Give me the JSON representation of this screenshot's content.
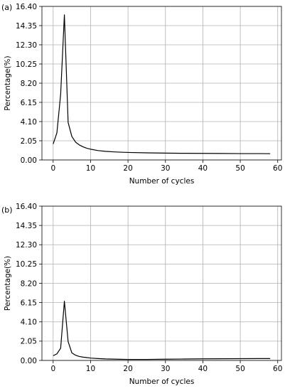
{
  "chart_data": [
    {
      "type": "line",
      "panel_label": "(a)",
      "xlabel": "Number of cycles",
      "ylabel": "Percentage(%)",
      "xlim": [
        -3,
        61
      ],
      "ylim": [
        0,
        16.4
      ],
      "xticks": [
        "0",
        "10",
        "20",
        "30",
        "40",
        "50",
        "60"
      ],
      "yticks": [
        "0.00",
        "2.05",
        "4.10",
        "6.15",
        "8.20",
        "10.25",
        "12.30",
        "14.35",
        "16.40"
      ],
      "grid": true,
      "series": [
        {
          "x": [
            0,
            1,
            2,
            3,
            4,
            5,
            6,
            7,
            8,
            9,
            10,
            12,
            14,
            16,
            18,
            20,
            25,
            30,
            35,
            40,
            45,
            50,
            55,
            58
          ],
          "y": [
            1.7,
            2.9,
            7.0,
            15.5,
            4.0,
            2.5,
            1.9,
            1.6,
            1.4,
            1.25,
            1.15,
            1.0,
            0.92,
            0.87,
            0.83,
            0.8,
            0.76,
            0.73,
            0.71,
            0.7,
            0.69,
            0.68,
            0.68,
            0.67
          ]
        }
      ]
    },
    {
      "type": "line",
      "panel_label": "(b)",
      "xlabel": "Number of cycles",
      "ylabel": "Percentage(%)",
      "xlim": [
        -3,
        61
      ],
      "ylim": [
        0,
        16.4
      ],
      "xticks": [
        "0",
        "10",
        "20",
        "30",
        "40",
        "50",
        "60"
      ],
      "yticks": [
        "0.00",
        "2.05",
        "4.10",
        "6.15",
        "8.20",
        "10.25",
        "12.30",
        "14.35",
        "16.40"
      ],
      "grid": true,
      "series": [
        {
          "x": [
            0,
            1,
            2,
            3,
            4,
            5,
            6,
            7,
            8,
            9,
            10,
            12,
            14,
            16,
            18,
            20,
            25,
            30,
            35,
            40,
            45,
            50,
            55,
            58
          ],
          "y": [
            0.5,
            0.7,
            1.3,
            6.3,
            2.0,
            0.8,
            0.55,
            0.42,
            0.35,
            0.3,
            0.25,
            0.2,
            0.16,
            0.14,
            0.12,
            0.11,
            0.11,
            0.13,
            0.15,
            0.17,
            0.18,
            0.19,
            0.2,
            0.2
          ]
        }
      ]
    }
  ]
}
